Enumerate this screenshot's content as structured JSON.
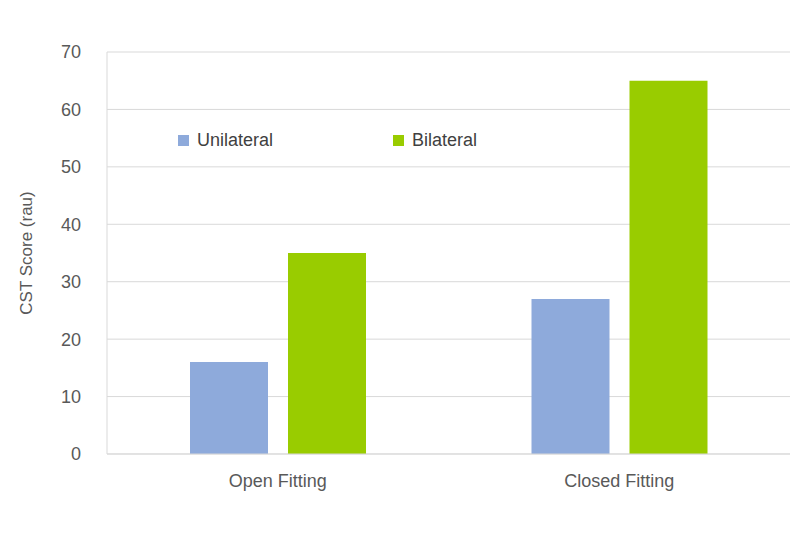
{
  "chart_data": {
    "type": "bar",
    "y_label": "CST Score (rau)",
    "categories": [
      "Open Fitting",
      "Closed Fitting"
    ],
    "series": [
      {
        "name": "Unilateral",
        "color": "#8eaadb",
        "values": [
          16,
          27
        ]
      },
      {
        "name": "Bilateral",
        "color": "#99cc00",
        "values": [
          35,
          65
        ]
      }
    ],
    "ylim": [
      0,
      70
    ],
    "yticks": [
      0,
      10,
      20,
      30,
      40,
      50,
      60,
      70
    ],
    "grid": true,
    "legend": "upper left"
  }
}
